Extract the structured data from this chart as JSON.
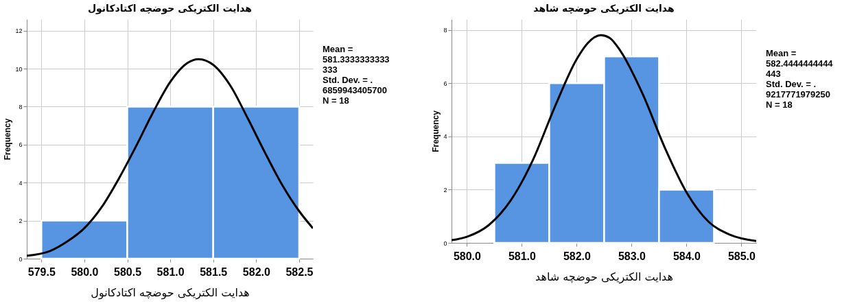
{
  "chart_data": [
    {
      "type": "histogram",
      "title": "هدایت الکتریکی حوضچه  اکتادکانول",
      "xlabel": "هدایت الکتریکی حوضچه  اکتادکانول",
      "ylabel": "Frequency",
      "bins": [
        579.5,
        580.5,
        581.5,
        582.5
      ],
      "values": [
        2,
        8,
        8
      ],
      "color": "#5795e3",
      "xlim": [
        579.33,
        582.66
      ],
      "xticks": [
        579.5,
        {
          "value": 580,
          "label": "580.0"
        },
        580.5,
        {
          "value": 581,
          "label": "581.0"
        },
        581.5,
        {
          "value": 582,
          "label": "582.0"
        },
        582.5
      ],
      "ylim": [
        0,
        12.6
      ],
      "yticks": [
        0,
        2,
        4,
        6,
        8,
        10,
        12
      ],
      "grid": true,
      "annotations": [
        "Mean =",
        "581.3333333333",
        "333",
        "Std. Dev. = .",
        "6859943405700",
        "N = 18"
      ],
      "series": [
        {
          "type": "line",
          "color": "#000000",
          "x": [
            579.33,
            579.6,
            579.8,
            580.0,
            580.2,
            580.4,
            580.6,
            580.8,
            581.0,
            581.2,
            581.33,
            581.5,
            581.7,
            581.9,
            582.1,
            582.3,
            582.5,
            582.66
          ],
          "values": [
            0.15,
            0.4,
            0.9,
            1.6,
            2.7,
            4.2,
            5.9,
            7.7,
            9.3,
            10.3,
            10.5,
            10.2,
            9.1,
            7.4,
            5.6,
            3.9,
            2.5,
            1.6
          ]
        }
      ]
    },
    {
      "type": "histogram",
      "title": "هدایت الکتریکی حوضچه  شاهد",
      "xlabel": "هدایت الکتریکی حوضچه  شاهد",
      "ylabel": "Frequency",
      "bins": [
        580.5,
        581.5,
        582.5,
        583.5,
        584.5
      ],
      "values": [
        3,
        6,
        7,
        2
      ],
      "color": "#5795e3",
      "xlim": [
        579.72,
        585.27
      ],
      "xticks": [
        {
          "value": 580,
          "label": "580.0"
        },
        {
          "value": 581,
          "label": "581.0"
        },
        {
          "value": 582,
          "label": "582.0"
        },
        {
          "value": 583,
          "label": "583.0"
        },
        {
          "value": 584,
          "label": "584.0"
        },
        {
          "value": 585,
          "label": "585.0"
        }
      ],
      "ylim": [
        0,
        8.4
      ],
      "yticks": [
        0,
        2,
        4,
        6,
        8
      ],
      "grid": true,
      "annotations": [
        "Mean =",
        "582.4444444444",
        "443",
        "Std. Dev. = .",
        "9217771979250",
        "N = 18"
      ],
      "series": [
        {
          "type": "line",
          "color": "#000000",
          "x": [
            579.72,
            580.0,
            580.4,
            580.8,
            581.2,
            581.6,
            582.0,
            582.2,
            582.44,
            582.6,
            582.8,
            583.2,
            583.6,
            584.0,
            584.4,
            584.8,
            585.27
          ],
          "values": [
            0.1,
            0.23,
            0.67,
            1.6,
            3.1,
            5.1,
            6.9,
            7.5,
            7.8,
            7.7,
            7.2,
            5.6,
            3.6,
            1.9,
            0.8,
            0.3,
            0.07
          ]
        }
      ]
    }
  ]
}
